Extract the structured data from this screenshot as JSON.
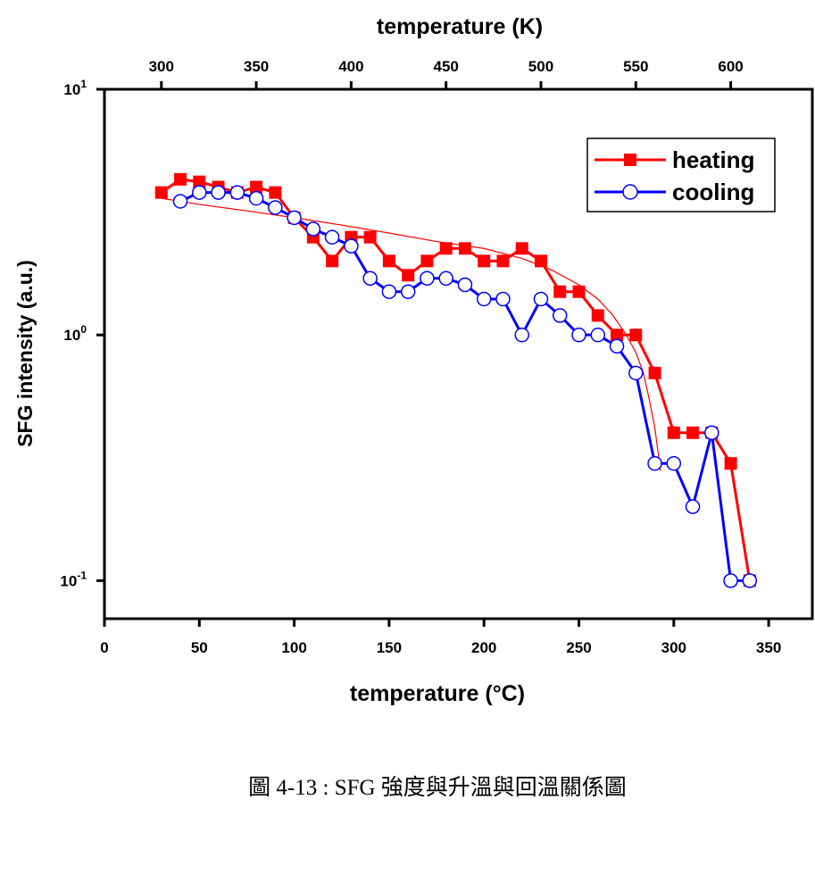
{
  "chart_data": {
    "type": "line",
    "title": "temperature (K)",
    "x_label": "temperature (°C)",
    "y_label": "SFG intensity (a.u.)",
    "caption": "圖 4-13 : SFG 強度與升溫與回溫關係圖",
    "xlim": [
      0,
      373
    ],
    "xticks": [
      0,
      50,
      100,
      150,
      200,
      250,
      300,
      350
    ],
    "x2lim": [
      270,
      643
    ],
    "x2ticks": [
      300,
      350,
      400,
      450,
      500,
      550,
      600
    ],
    "ylim": [
      0.07,
      10
    ],
    "y_scale": "log",
    "yticks": [
      {
        "value": 10,
        "label": "10",
        "exponent": "1"
      },
      {
        "value": 1,
        "label": "10",
        "exponent": "0"
      },
      {
        "value": 0.1,
        "label": "10",
        "exponent": "-1"
      }
    ],
    "legend_position": "upper right",
    "series": [
      {
        "name": "heating",
        "color": "#ff0000",
        "marker": "square",
        "x": [
          30,
          40,
          50,
          60,
          70,
          80,
          90,
          100,
          110,
          120,
          130,
          140,
          150,
          160,
          170,
          180,
          190,
          200,
          210,
          220,
          230,
          240,
          250,
          260,
          270,
          280,
          290,
          300,
          310,
          320,
          330,
          340
        ],
        "values": [
          3.8,
          4.3,
          4.2,
          4.0,
          3.8,
          4.0,
          3.8,
          3.0,
          2.5,
          2.0,
          2.5,
          2.5,
          2.0,
          1.75,
          2.0,
          2.25,
          2.25,
          2.0,
          2.0,
          2.25,
          2.0,
          1.5,
          1.5,
          1.2,
          1.0,
          1.0,
          0.7,
          0.4,
          0.4,
          0.4,
          0.3,
          0.1
        ]
      },
      {
        "name": "cooling",
        "color": "#0000ff",
        "marker": "circle",
        "x": [
          40,
          50,
          60,
          70,
          80,
          90,
          100,
          110,
          120,
          130,
          140,
          150,
          160,
          170,
          180,
          190,
          200,
          210,
          220,
          230,
          240,
          250,
          260,
          270,
          280,
          290,
          300,
          310,
          320,
          330,
          340
        ],
        "values": [
          3.5,
          3.8,
          3.8,
          3.8,
          3.6,
          3.3,
          3.0,
          2.7,
          2.5,
          2.3,
          1.7,
          1.5,
          1.5,
          1.7,
          1.7,
          1.6,
          1.4,
          1.4,
          1.0,
          1.4,
          1.2,
          1.0,
          1.0,
          0.9,
          0.7,
          0.3,
          0.3,
          0.2,
          0.4,
          0.1,
          0.1
        ]
      }
    ],
    "fit": {
      "color": "#ff0000",
      "x": [
        30,
        50,
        75,
        100,
        125,
        150,
        175,
        200,
        220,
        235,
        250,
        260,
        268,
        275,
        280,
        284,
        287,
        290,
        293
      ],
      "values": [
        3.6,
        3.4,
        3.2,
        3.0,
        2.8,
        2.6,
        2.4,
        2.25,
        2.05,
        1.85,
        1.6,
        1.4,
        1.2,
        1.0,
        0.85,
        0.7,
        0.55,
        0.42,
        0.28
      ]
    }
  }
}
